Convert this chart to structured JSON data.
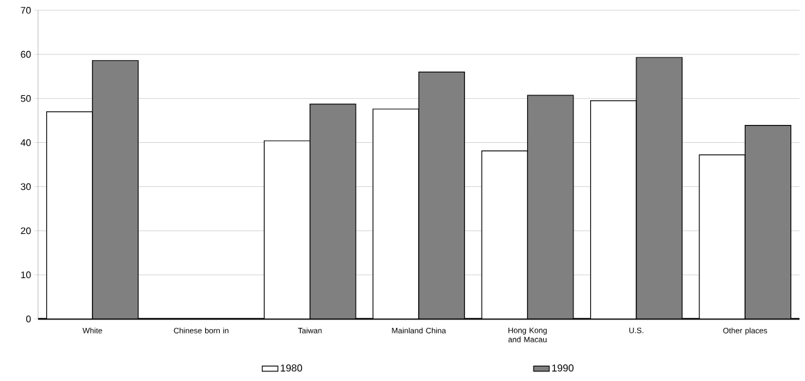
{
  "chart_data": {
    "type": "bar",
    "categories": [
      "White",
      "Chinese born in",
      "Taiwan",
      "Mainland China",
      "Hong Kong and Macau",
      "U.S.",
      "Other places"
    ],
    "series": [
      {
        "name": "1980",
        "color": "#ffffff",
        "values": [
          47.0,
          null,
          40.4,
          47.6,
          38.1,
          49.5,
          37.2
        ]
      },
      {
        "name": "1990",
        "color": "#808080",
        "values": [
          58.6,
          null,
          48.7,
          56.0,
          50.7,
          59.3,
          43.9
        ]
      }
    ],
    "ylim": [
      0,
      70
    ],
    "yticks": [
      0,
      10,
      20,
      30,
      40,
      50,
      60,
      70
    ],
    "grid": "y",
    "legend": "bottom"
  }
}
